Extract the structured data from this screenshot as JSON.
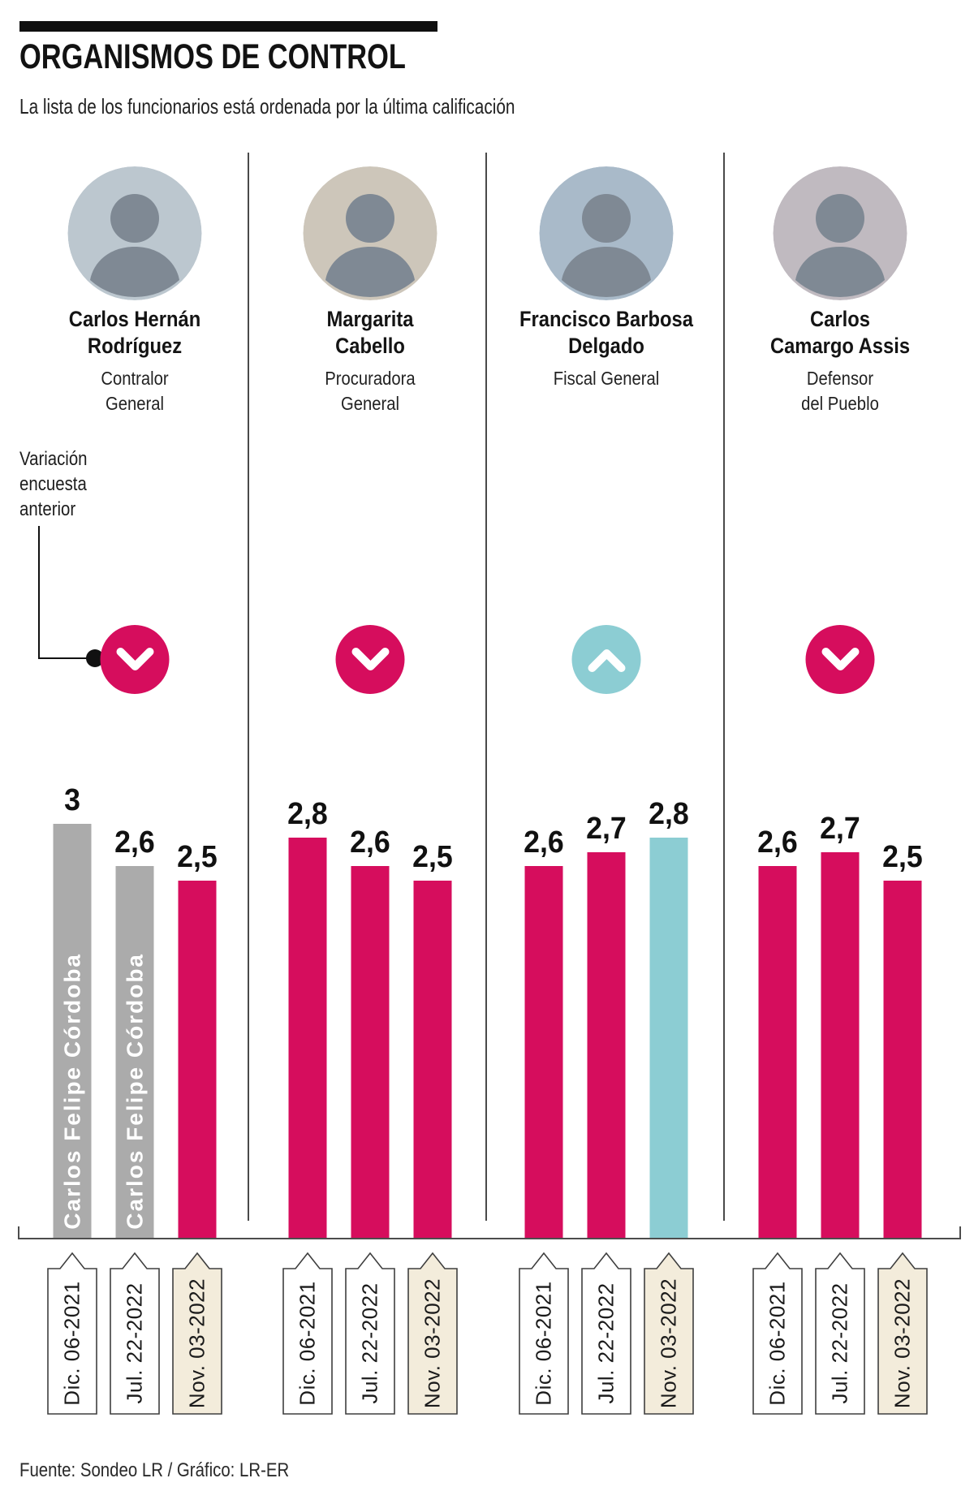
{
  "header": {
    "title": "ORGANISMOS DE CONTROL",
    "subtitle": "La lista de los funcionarios está ordenada por la última calificación"
  },
  "annotation": {
    "label": "Variación encuesta anterior",
    "label_lines": [
      "Variación",
      "encuesta",
      "anterior"
    ]
  },
  "footer": {
    "source": "Fuente: Sondeo LR / Gráfico: LR-ER"
  },
  "colors": {
    "pink": "#d60d5d",
    "teal": "#8ccdd3",
    "gray": "#ababab",
    "highlight_tag_bg": "#f3ecdb",
    "white": "#ffffff"
  },
  "chart_data": {
    "type": "bar",
    "title": "ORGANISMOS DE CONTROL",
    "categories": [
      "Dic. 06-2021",
      "Jul. 22-2022",
      "Nov. 03-2022"
    ],
    "ylim": [
      0,
      3
    ],
    "grid": "off",
    "legend_position": "none",
    "series": [
      {
        "name": "Carlos Hernán Rodríguez",
        "name_lines": [
          "Carlos Hernán",
          "Rodríguez"
        ],
        "role": "Contralor General",
        "role_lines": [
          "Contralor",
          "General"
        ],
        "indicator": {
          "direction": "down",
          "color": "pink"
        },
        "values": [
          3,
          2.6,
          2.5
        ],
        "value_labels": [
          "3",
          "2,6",
          "2,5"
        ],
        "bar_colors": [
          "gray",
          "gray",
          "pink"
        ],
        "bar_inner_labels": [
          "Carlos Felipe Córdoba",
          "Carlos Felipe Córdoba",
          ""
        ]
      },
      {
        "name": "Margarita Cabello",
        "name_lines": [
          "Margarita",
          "Cabello"
        ],
        "role": "Procuradora General",
        "role_lines": [
          "Procuradora",
          "General"
        ],
        "indicator": {
          "direction": "down",
          "color": "pink"
        },
        "values": [
          2.8,
          2.6,
          2.5
        ],
        "value_labels": [
          "2,8",
          "2,6",
          "2,5"
        ],
        "bar_colors": [
          "pink",
          "pink",
          "pink"
        ],
        "bar_inner_labels": [
          "",
          "",
          ""
        ]
      },
      {
        "name": "Francisco Barbosa Delgado",
        "name_lines": [
          "Francisco Barbosa",
          "Delgado"
        ],
        "role": "Fiscal General",
        "role_lines": [
          "Fiscal General",
          ""
        ],
        "indicator": {
          "direction": "up",
          "color": "teal"
        },
        "values": [
          2.6,
          2.7,
          2.8
        ],
        "value_labels": [
          "2,6",
          "2,7",
          "2,8"
        ],
        "bar_colors": [
          "pink",
          "pink",
          "teal"
        ],
        "bar_inner_labels": [
          "",
          "",
          ""
        ]
      },
      {
        "name": "Carlos Camargo Assis",
        "name_lines": [
          "Carlos",
          "Camargo Assis"
        ],
        "role": "Defensor del Pueblo",
        "role_lines": [
          "Defensor",
          "del Pueblo"
        ],
        "indicator": {
          "direction": "down",
          "color": "pink"
        },
        "values": [
          2.6,
          2.7,
          2.5
        ],
        "value_labels": [
          "2,6",
          "2,7",
          "2,5"
        ],
        "bar_colors": [
          "pink",
          "pink",
          "pink"
        ],
        "bar_inner_labels": [
          "",
          "",
          ""
        ]
      }
    ]
  }
}
